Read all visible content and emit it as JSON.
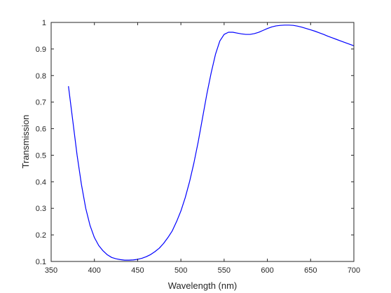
{
  "chart_data": {
    "type": "line",
    "title": "",
    "xlabel": "Wavelength (nm)",
    "ylabel": "Transmission",
    "xlim": [
      350,
      700
    ],
    "ylim": [
      0.1,
      1
    ],
    "xticks": [
      350,
      400,
      450,
      500,
      550,
      600,
      650,
      700
    ],
    "xtick_labels": [
      "350",
      "400",
      "450",
      "500",
      "550",
      "600",
      "650",
      "700"
    ],
    "yticks": [
      0.1,
      0.2,
      0.3,
      0.4,
      0.5,
      0.6,
      0.7,
      0.8,
      0.9,
      1
    ],
    "ytick_labels": [
      "0.1",
      "0.2",
      "0.3",
      "0.4",
      "0.5",
      "0.6",
      "0.7",
      "0.8",
      "0.9",
      "1"
    ],
    "grid": false,
    "line_color": "#0000ff",
    "axis_color": "#262626",
    "series": [
      {
        "x": [
          370,
          375,
          380,
          385,
          390,
          395,
          400,
          405,
          410,
          415,
          420,
          425,
          430,
          435,
          440,
          445,
          450,
          455,
          460,
          465,
          470,
          475,
          480,
          485,
          490,
          495,
          500,
          505,
          510,
          515,
          520,
          525,
          530,
          535,
          540,
          545,
          550,
          555,
          560,
          565,
          570,
          575,
          580,
          585,
          590,
          595,
          600,
          605,
          610,
          615,
          620,
          625,
          630,
          635,
          640,
          645,
          650,
          655,
          660,
          665,
          670,
          675,
          680,
          685,
          690,
          695,
          700
        ],
        "y": [
          0.76,
          0.63,
          0.5,
          0.39,
          0.3,
          0.235,
          0.19,
          0.16,
          0.14,
          0.125,
          0.115,
          0.11,
          0.107,
          0.105,
          0.105,
          0.106,
          0.108,
          0.112,
          0.118,
          0.126,
          0.137,
          0.15,
          0.168,
          0.19,
          0.215,
          0.25,
          0.29,
          0.34,
          0.4,
          0.47,
          0.55,
          0.64,
          0.73,
          0.81,
          0.88,
          0.93,
          0.955,
          0.963,
          0.963,
          0.96,
          0.957,
          0.955,
          0.955,
          0.958,
          0.963,
          0.97,
          0.977,
          0.983,
          0.987,
          0.989,
          0.99,
          0.99,
          0.989,
          0.986,
          0.982,
          0.977,
          0.972,
          0.967,
          0.961,
          0.955,
          0.948,
          0.942,
          0.936,
          0.93,
          0.924,
          0.918,
          0.912
        ]
      }
    ]
  }
}
